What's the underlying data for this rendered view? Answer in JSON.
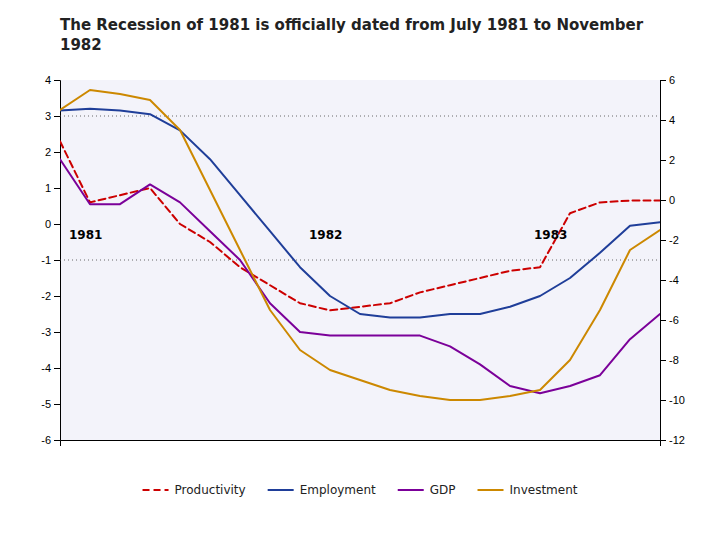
{
  "chart_data": {
    "type": "line",
    "title": "The Recession of 1981 is officially dated from July 1981 to November\n1982",
    "x": [
      0,
      1,
      2,
      3,
      4,
      5,
      6,
      7,
      8,
      9,
      10,
      11,
      12,
      13,
      14,
      15,
      16,
      17,
      18,
      19,
      20
    ],
    "xlim": [
      0,
      20
    ],
    "ylim": [
      -6,
      4
    ],
    "yticks": [
      -6,
      -5,
      -4,
      -3,
      -2,
      -1,
      0,
      1,
      2,
      3,
      4
    ],
    "y2lim": [
      -12,
      6
    ],
    "y2ticks": [
      -12,
      -10,
      -8,
      -6,
      -4,
      -2,
      0,
      2,
      4,
      6
    ],
    "tick_labels": "y",
    "legend": "bottom",
    "hlines": [
      3.0,
      -1.0
    ],
    "series": [
      {
        "name": "Productivity",
        "color": "#CC0000",
        "line_style": "dashed",
        "values": [
          2.3,
          0.6,
          0.8,
          1.0,
          0.0,
          -0.5,
          -1.2,
          -1.7,
          -2.2,
          -2.4,
          -2.3,
          -2.2,
          -1.9,
          -1.7,
          -1.5,
          -1.3,
          -1.2,
          0.3,
          0.6,
          0.65,
          0.65
        ]
      },
      {
        "name": "Employment",
        "color": "#1F3E99",
        "line_style": "solid",
        "values": [
          3.15,
          3.2,
          3.15,
          3.05,
          2.6,
          1.8,
          0.8,
          -0.2,
          -1.2,
          -2.0,
          -2.5,
          -2.6,
          -2.6,
          -2.5,
          -2.5,
          -2.3,
          -2.0,
          -1.5,
          -0.8,
          -0.05,
          0.05
        ]
      },
      {
        "name": "GDP",
        "color": "#7B0099",
        "line_style": "solid",
        "values": [
          1.8,
          0.55,
          0.55,
          1.1,
          0.6,
          -0.2,
          -1.0,
          -2.2,
          -3.0,
          -3.1,
          -3.1,
          -3.1,
          -3.1,
          -3.4,
          -3.9,
          -4.5,
          -4.7,
          -4.5,
          -4.2,
          -3.2,
          -2.5
        ]
      },
      {
        "name": "Investment",
        "color": "#CC8800",
        "line_style": "solid",
        "axis": "y2",
        "values": [
          4.5,
          5.5,
          5.3,
          5.0,
          3.5,
          0.5,
          -2.5,
          -5.5,
          -7.5,
          -8.5,
          -9.0,
          -9.5,
          -9.8,
          -10.0,
          -10.0,
          -9.8,
          -9.5,
          -8.0,
          -5.5,
          -2.5,
          -1.5
        ]
      }
    ],
    "annotations": [
      {
        "text": "1981",
        "x": 0.3,
        "y": -0.08
      },
      {
        "text": "1982",
        "x": 8.3,
        "y": -0.08
      },
      {
        "text": "1983",
        "x": 15.8,
        "y": -0.08
      }
    ]
  }
}
